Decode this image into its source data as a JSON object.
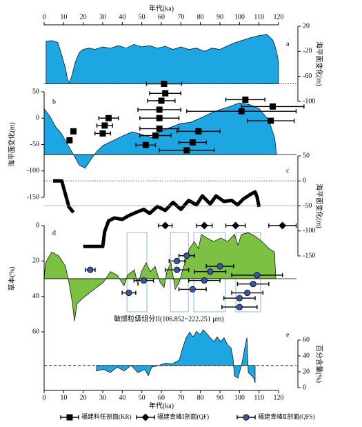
{
  "chart_data": [
    {
      "type": "area",
      "label": "a",
      "xlabel": "年代(ka)",
      "x_axis": "top",
      "xlim": [
        0,
        120
      ],
      "xticks": [
        0,
        10,
        20,
        30,
        40,
        50,
        60,
        70,
        80,
        90,
        100,
        110,
        120
      ],
      "ylabel": "海平面变化(m)",
      "y_side": "right",
      "ylim": [
        -100,
        20
      ],
      "yticks": [
        -100,
        -60,
        -20,
        20
      ],
      "baseline": -72,
      "baseline_style": "dotted",
      "color": "#1ea6e3",
      "x": [
        1,
        4,
        7,
        9,
        11,
        12,
        13,
        14,
        16,
        18,
        20,
        23,
        26,
        30,
        34,
        38,
        42,
        46,
        50,
        54,
        58,
        62,
        66,
        70,
        74,
        78,
        82,
        86,
        90,
        94,
        98,
        102,
        106,
        110,
        114,
        117,
        118,
        119,
        120
      ],
      "values": [
        -4,
        -3,
        -6,
        -26,
        -48,
        -65,
        -70,
        -61,
        -37,
        -22,
        -17,
        -15,
        -17,
        -13,
        -15,
        -11,
        -15,
        -9,
        -13,
        -11,
        -15,
        -12,
        -17,
        -13,
        -17,
        -15,
        -20,
        -15,
        -17,
        -11,
        -6,
        -2,
        2,
        5,
        7,
        -2,
        -10,
        -21,
        -37
      ]
    },
    {
      "type": "area",
      "label": "b",
      "ylabel": "海平面变化(m)",
      "y_side": "left",
      "ylim": [
        -150,
        50
      ],
      "yticks": [
        -150,
        -100,
        -50,
        0,
        50
      ],
      "baseline": -69,
      "baseline_style": "solid",
      "color": "#1ea6e3",
      "x": [
        0,
        3,
        6,
        9,
        12,
        15,
        18,
        21,
        24,
        27,
        30,
        35,
        40,
        45,
        50,
        55,
        60,
        65,
        70,
        75,
        80,
        85,
        90,
        95,
        100,
        105,
        110,
        115,
        118,
        119
      ],
      "values": [
        18,
        3,
        -17,
        -30,
        -50,
        -69,
        -89,
        -95,
        -78,
        -63,
        -52,
        -43,
        -34,
        -26,
        -31,
        -37,
        -24,
        -17,
        -10,
        -8,
        0,
        9,
        16,
        22,
        29,
        26,
        18,
        -4,
        -37,
        -69
      ],
      "series": [
        {
          "name": "福建科任剖面(KR)",
          "marker": "square",
          "color": "#000000",
          "x": [
            61.4,
            62,
            60,
            59,
            59,
            59,
            57,
            52,
            33,
            31,
            30,
            15,
            13,
            79,
            76,
            73,
            103,
            117,
            101,
            116
          ],
          "values": [
            65,
            47,
            33,
            16,
            0,
            -20,
            -33,
            -51,
            0,
            -14,
            -29,
            -25,
            -42,
            -25,
            -46,
            -61,
            35,
            22,
            13,
            -5
          ],
          "xerr": [
            9,
            8,
            7,
            11,
            10,
            10,
            8,
            5,
            5,
            4,
            4,
            1,
            1,
            11,
            7,
            14,
            10,
            16,
            28,
            12
          ]
        }
      ]
    },
    {
      "type": "line",
      "label": "c",
      "ylabel": "海平面变化(m)",
      "y_side": "right",
      "ylim": [
        -150,
        50
      ],
      "yticks": [
        -150,
        -100,
        -50,
        0,
        50
      ],
      "reference_lines": [
        0,
        -50
      ],
      "color": "#000000",
      "x": [
        4.6,
        9,
        12.7,
        15,
        17,
        20,
        30,
        31,
        33,
        36,
        40,
        43,
        47,
        51,
        54,
        58,
        62,
        66,
        70,
        74,
        78,
        81,
        85,
        88,
        92,
        96,
        99,
        102,
        106,
        108,
        109,
        110
      ],
      "values": [
        0,
        0,
        -52,
        -63,
        null,
        -131,
        -131,
        -101,
        -80,
        -74,
        -77,
        -70,
        -63,
        -57,
        -65,
        -51,
        -59,
        -43,
        -57,
        -39,
        -48,
        -30,
        -46,
        -30,
        -41,
        -39,
        -48,
        -36,
        -26,
        -22,
        -32,
        -52
      ]
    },
    {
      "type": "area",
      "label": "d",
      "ylabel": "草本(%)",
      "y_side": "left",
      "ylim": [
        0,
        60
      ],
      "y_inverted": true,
      "yticks": [
        0,
        20,
        40,
        60
      ],
      "baseline": 30,
      "baseline_style": "solid",
      "color": "#7dc142",
      "x": [
        0,
        0.7,
        3.9,
        7.4,
        10.9,
        12.7,
        14.5,
        15.5,
        16.9,
        19.8,
        23.3,
        26.8,
        30.4,
        33.9,
        37.4,
        40.9,
        42.7,
        46.2,
        48,
        49.8,
        52.2,
        54.4,
        56.8,
        59.3,
        61.4,
        62.8,
        64.9,
        67.1,
        69.2,
        70.9,
        72.7,
        74.4,
        76.9,
        79,
        80.5,
        83.3,
        86.8,
        90.4,
        93.9,
        97.4,
        99.2,
        101,
        104.5,
        108,
        111.5,
        115.1,
        117.9,
        118.6
      ],
      "values": [
        30,
        21,
        15,
        17,
        23,
        32,
        44,
        54,
        44,
        41,
        38,
        35,
        32,
        26,
        28,
        34,
        28,
        25,
        34,
        26,
        21,
        26,
        23,
        32,
        35,
        26,
        21,
        36,
        32,
        25,
        19,
        13,
        9,
        13,
        5,
        7,
        9,
        7,
        9,
        5,
        11,
        5,
        4,
        6,
        9,
        13,
        15,
        30
      ],
      "spans": [
        [
          42.4,
          52.6
        ],
        [
          64.6,
          73.8
        ],
        [
          76.6,
          92.8
        ],
        [
          98.1,
          110.8
        ]
      ],
      "series": [
        {
          "name": "福建青峰Ⅰ剖面(QF)",
          "marker": "diamond",
          "color": "#000000",
          "x": [
            62,
            82,
            98,
            122
          ],
          "values": [
            0,
            0,
            0,
            0
          ],
          "xerr": [
            3.5,
            4,
            5,
            7
          ]
        },
        {
          "name": "福建青峰Ⅱ剖面(QFS)",
          "marker": "circle",
          "color": "#3a55a4",
          "x": [
            23.6,
            51,
            43.4,
            73,
            68,
            68,
            90,
            85,
            82,
            76,
            109,
            107,
            104,
            100,
            100
          ],
          "values": [
            25,
            31,
            38,
            17,
            20,
            25,
            23,
            26,
            31,
            36,
            28,
            33,
            38,
            41,
            46
          ],
          "xerr": [
            2.5,
            5,
            3.5,
            4,
            4,
            6,
            7,
            8,
            8,
            7,
            13,
            8,
            8,
            8,
            9
          ]
        }
      ]
    },
    {
      "type": "area",
      "label": "e",
      "title": "敏感粒级组分II(106.852~222.251 μm)",
      "xlabel": "年代(ka)",
      "x_axis": "bottom",
      "xlim": [
        0,
        120
      ],
      "xticks": [
        0,
        10,
        20,
        30,
        40,
        50,
        60,
        70,
        80,
        90,
        100,
        110,
        120
      ],
      "ylabel": "百分含量(%)",
      "y_side": "right",
      "ylim": [
        0,
        60
      ],
      "yticks": [
        0,
        20,
        40,
        60
      ],
      "baseline": 28,
      "baseline_style": "dashed",
      "color": "#1ea6e3",
      "x": [
        26.8,
        30.4,
        33.9,
        37.4,
        40.9,
        44.5,
        48,
        51.5,
        53.3,
        55.1,
        58.6,
        62.1,
        65.7,
        69.2,
        70.9,
        72.7,
        74.5,
        76.2,
        78,
        79.8,
        81.5,
        83.3,
        85.1,
        86.8,
        88.6,
        90.4,
        92.1,
        93.9,
        95.7,
        96.7,
        97.4,
        99.2,
        101,
        102.7,
        103.8,
        104.5,
        106.2,
        107.3,
        108
      ],
      "values": [
        21,
        23,
        19,
        26,
        21,
        28,
        19,
        23,
        15,
        26,
        28,
        31,
        30,
        35,
        50,
        63,
        70,
        64,
        71,
        67,
        73,
        68,
        63,
        58,
        64,
        58,
        63,
        54,
        50,
        37,
        15,
        12,
        28,
        50,
        63,
        19,
        15,
        12,
        6
      ]
    }
  ]
}
